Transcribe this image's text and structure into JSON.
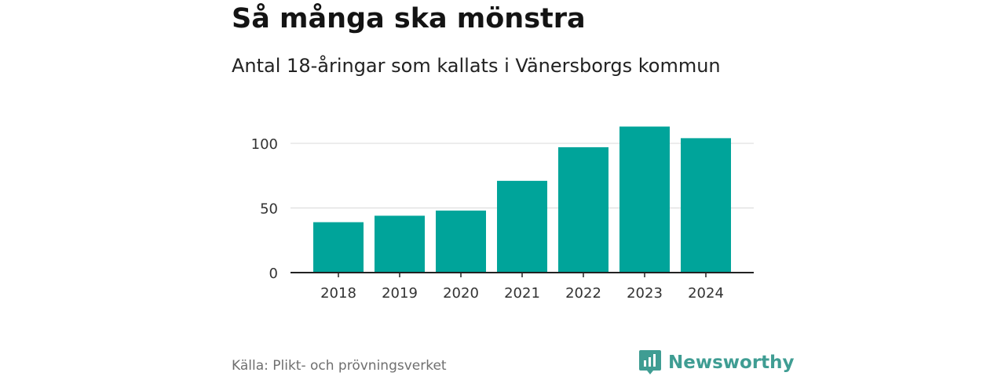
{
  "header": {
    "title": "Så många ska mönstra",
    "subtitle": "Antal 18-åringar som kallats i Vänersborgs kommun"
  },
  "chart_data": {
    "type": "bar",
    "categories": [
      "2018",
      "2019",
      "2020",
      "2021",
      "2022",
      "2023",
      "2024"
    ],
    "values": [
      39,
      44,
      48,
      71,
      97,
      113,
      104
    ],
    "ylim": [
      0,
      120
    ],
    "yticks": [
      0,
      50,
      100
    ],
    "title": "Så många ska mönstra",
    "subtitle": "Antal 18-åringar som kallats i Vänersborgs kommun",
    "xlabel": "",
    "ylabel": "",
    "grid": true,
    "bar_color": "#00a49a"
  },
  "footer": {
    "source": "Källa: Plikt- och prövningsverket",
    "brand": "Newsworthy",
    "brand_icon": "newsworthy-logo-icon",
    "brand_color": "#3f9d93"
  }
}
